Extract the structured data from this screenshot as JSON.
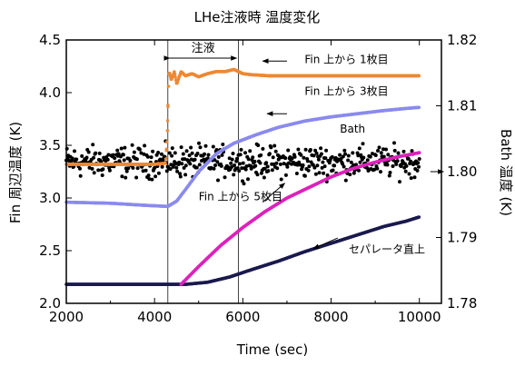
{
  "chart_data": {
    "type": "scatter",
    "title": "LHe注液時 温度変化",
    "xlabel": "Time (sec)",
    "ylabel_left": "Fin 周辺温度 (K)",
    "ylabel_right": "Bath 温度 (K)",
    "xlim": [
      2000,
      10500
    ],
    "ylim_left": [
      2.0,
      4.5
    ],
    "ylim_right": [
      1.78,
      1.82
    ],
    "x_ticks": [
      "2000",
      "4000",
      "6000",
      "8000",
      "10000"
    ],
    "y_ticks_left": [
      "2.0",
      "2.5",
      "3.0",
      "3.5",
      "4.0",
      "4.5"
    ],
    "y_ticks_right": [
      "1.78",
      "1.79",
      "1.80",
      "1.81",
      "1.82"
    ],
    "grid": false,
    "event_lines_x": [
      4300,
      5900
    ],
    "event_label": "注液",
    "series": [
      {
        "name": "Fin 上から 1枚目",
        "color": "#ee8833",
        "axis": "left",
        "points": [
          [
            2000,
            3.32
          ],
          [
            3000,
            3.32
          ],
          [
            4000,
            3.32
          ],
          [
            4250,
            3.33
          ],
          [
            4290,
            3.6
          ],
          [
            4310,
            4.0
          ],
          [
            4330,
            4.2
          ],
          [
            4380,
            4.12
          ],
          [
            4450,
            4.2
          ],
          [
            4500,
            4.08
          ],
          [
            4600,
            4.2
          ],
          [
            4700,
            4.16
          ],
          [
            4850,
            4.18
          ],
          [
            5000,
            4.15
          ],
          [
            5200,
            4.18
          ],
          [
            5400,
            4.2
          ],
          [
            5600,
            4.2
          ],
          [
            5800,
            4.22
          ],
          [
            6000,
            4.18
          ],
          [
            6200,
            4.17
          ],
          [
            6600,
            4.16
          ],
          [
            7500,
            4.16
          ],
          [
            8500,
            4.16
          ],
          [
            9500,
            4.16
          ],
          [
            10000,
            4.16
          ]
        ]
      },
      {
        "name": "Fin 上から 3枚目",
        "color": "#8a8aee",
        "axis": "left",
        "points": [
          [
            2000,
            2.96
          ],
          [
            3000,
            2.95
          ],
          [
            3800,
            2.93
          ],
          [
            4300,
            2.92
          ],
          [
            4500,
            2.97
          ],
          [
            4700,
            3.08
          ],
          [
            5000,
            3.25
          ],
          [
            5400,
            3.42
          ],
          [
            5800,
            3.52
          ],
          [
            6300,
            3.6
          ],
          [
            6800,
            3.67
          ],
          [
            7400,
            3.73
          ],
          [
            8000,
            3.77
          ],
          [
            8600,
            3.8
          ],
          [
            9200,
            3.83
          ],
          [
            9700,
            3.85
          ],
          [
            10000,
            3.86
          ]
        ]
      },
      {
        "name": "Fin 上から 5枚目",
        "color": "#dd22bb",
        "axis": "left",
        "points": [
          [
            4600,
            2.18
          ],
          [
            5000,
            2.35
          ],
          [
            5500,
            2.55
          ],
          [
            6000,
            2.72
          ],
          [
            6500,
            2.87
          ],
          [
            7000,
            3.0
          ],
          [
            7500,
            3.1
          ],
          [
            8000,
            3.2
          ],
          [
            8500,
            3.28
          ],
          [
            9000,
            3.34
          ],
          [
            9500,
            3.39
          ],
          [
            10000,
            3.43
          ]
        ]
      },
      {
        "name": "セパレータ直上",
        "color": "#1a1a4e",
        "axis": "left",
        "points": [
          [
            2000,
            2.18
          ],
          [
            3000,
            2.18
          ],
          [
            4000,
            2.18
          ],
          [
            4700,
            2.18
          ],
          [
            5200,
            2.2
          ],
          [
            5700,
            2.25
          ],
          [
            6200,
            2.32
          ],
          [
            6800,
            2.4
          ],
          [
            7400,
            2.49
          ],
          [
            8000,
            2.57
          ],
          [
            8600,
            2.65
          ],
          [
            9200,
            2.73
          ],
          [
            9700,
            2.78
          ],
          [
            10000,
            2.82
          ]
        ]
      },
      {
        "name": "Bath",
        "color": "#000000",
        "axis": "right",
        "center": 1.8015,
        "spread": 0.0035,
        "xrange": [
          2000,
          10000
        ],
        "count": 520
      }
    ],
    "annotations": [
      {
        "text": "Fin  上から 1枚目",
        "series": 0,
        "x": 7400,
        "y": 4.28
      },
      {
        "text": "Fin  上から 3枚目",
        "series": 1,
        "x": 7400,
        "y": 3.98
      },
      {
        "text": "Bath",
        "series": 4,
        "x": 8200,
        "y": 3.62
      },
      {
        "text": "Fin  上から 5枚目",
        "series": 2,
        "x": 5000,
        "y": 2.98
      },
      {
        "text": "セパレータ直上",
        "series": 3,
        "x": 8400,
        "y": 2.48
      }
    ],
    "arrows": [
      {
        "series": 0,
        "x1": 7000,
        "y1": 4.3,
        "x2": 6450,
        "y2": 4.3,
        "axis": "left"
      },
      {
        "series": 1,
        "x1": 7000,
        "y1": 3.8,
        "x2": 6550,
        "y2": 3.8,
        "axis": "left"
      },
      {
        "series": 2,
        "x1": 6450,
        "y1": 2.96,
        "x2": 6950,
        "y2": 3.14,
        "axis": "left"
      },
      {
        "series": 3,
        "x1": 8150,
        "y1": 2.62,
        "x2": 7600,
        "y2": 2.52,
        "axis": "left"
      },
      {
        "series": 4,
        "x1": 10250,
        "y1": 1.8,
        "x2": 10550,
        "y2": 1.8,
        "axis": "right"
      }
    ]
  }
}
